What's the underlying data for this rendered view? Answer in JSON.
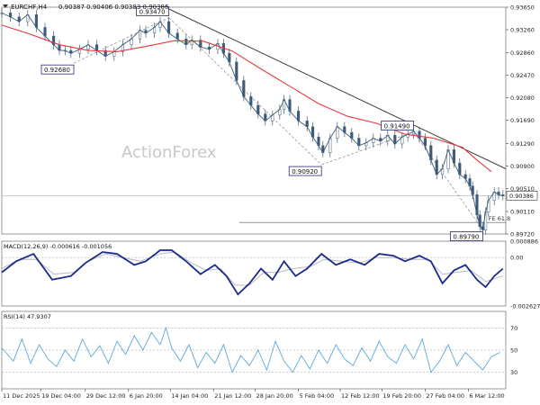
{
  "header": {
    "symbol": "EURCHF,H4",
    "ohlc": "0.90387 0.90406 0.90383 0.90386"
  },
  "watermark": "ActionForex",
  "colors": {
    "candles": "#3d5a7a",
    "sma": "#e8383d",
    "trendline": "#2b2b2b",
    "swingline": "#7a7a7a",
    "macd": "#1a2a8a",
    "signal": "#b8b8c8",
    "rsi": "#5da8e0",
    "label_border": "#2a2a7a",
    "grid": "#9a9a9a"
  },
  "chart_data": [
    {
      "type": "candlestick",
      "name": "price",
      "y_ticks": [
        "0.93650",
        "0.93260",
        "0.92860",
        "0.92470",
        "0.92080",
        "0.91690",
        "0.91290",
        "0.90900",
        "0.90510",
        "0.90110",
        "0.89720"
      ],
      "ylim": [
        0.8972,
        0.9365
      ],
      "current_price": "0.90386",
      "moving_average_path": [
        [
          0,
          0.9334
        ],
        [
          20,
          0.9318
        ],
        [
          40,
          0.93
        ],
        [
          60,
          0.929
        ],
        [
          80,
          0.9288
        ],
        [
          100,
          0.9297
        ],
        [
          120,
          0.9307
        ],
        [
          140,
          0.9306
        ],
        [
          160,
          0.9289
        ],
        [
          180,
          0.9258
        ],
        [
          200,
          0.9228
        ],
        [
          220,
          0.9198
        ],
        [
          240,
          0.9176
        ],
        [
          260,
          0.9164
        ],
        [
          280,
          0.9145
        ],
        [
          300,
          0.9138
        ],
        [
          320,
          0.9122
        ],
        [
          330,
          0.91
        ],
        [
          340,
          0.908
        ]
      ],
      "price_path": [
        [
          0,
          0.9355
        ],
        [
          6,
          0.9348
        ],
        [
          12,
          0.934
        ],
        [
          18,
          0.9352
        ],
        [
          24,
          0.933
        ],
        [
          30,
          0.9315
        ],
        [
          36,
          0.93
        ],
        [
          40,
          0.929
        ],
        [
          44,
          0.929
        ],
        [
          48,
          0.9285
        ],
        [
          54,
          0.9292
        ],
        [
          60,
          0.93
        ],
        [
          66,
          0.929
        ],
        [
          72,
          0.928
        ],
        [
          78,
          0.9288
        ],
        [
          84,
          0.93
        ],
        [
          90,
          0.931
        ],
        [
          96,
          0.9325
        ],
        [
          100,
          0.932
        ],
        [
          106,
          0.933
        ],
        [
          110,
          0.934
        ],
        [
          116,
          0.932
        ],
        [
          122,
          0.931
        ],
        [
          128,
          0.93
        ],
        [
          132,
          0.9308
        ],
        [
          138,
          0.9296
        ],
        [
          144,
          0.9292
        ],
        [
          150,
          0.9302
        ],
        [
          154,
          0.9285
        ],
        [
          158,
          0.927
        ],
        [
          163,
          0.9238
        ],
        [
          168,
          0.921
        ],
        [
          173,
          0.9195
        ],
        [
          178,
          0.918
        ],
        [
          183,
          0.9168
        ],
        [
          188,
          0.9178
        ],
        [
          193,
          0.9188
        ],
        [
          196,
          0.9205
        ],
        [
          200,
          0.9185
        ],
        [
          206,
          0.9168
        ],
        [
          212,
          0.9158
        ],
        [
          216,
          0.914
        ],
        [
          220,
          0.9125
        ],
        [
          223,
          0.9113
        ],
        [
          228,
          0.9138
        ],
        [
          233,
          0.9158
        ],
        [
          238,
          0.9148
        ],
        [
          243,
          0.9138
        ],
        [
          248,
          0.9125
        ],
        [
          253,
          0.913
        ],
        [
          258,
          0.9138
        ],
        [
          263,
          0.9133
        ],
        [
          268,
          0.9143
        ],
        [
          273,
          0.9128
        ],
        [
          278,
          0.914
        ],
        [
          282,
          0.9145
        ],
        [
          286,
          0.915
        ],
        [
          290,
          0.9138
        ],
        [
          294,
          0.9125
        ],
        [
          298,
          0.91
        ],
        [
          302,
          0.9075
        ],
        [
          306,
          0.9085
        ],
        [
          310,
          0.9118
        ],
        [
          314,
          0.9095
        ],
        [
          318,
          0.9075
        ],
        [
          322,
          0.9068
        ],
        [
          325,
          0.9055
        ],
        [
          327,
          0.904
        ],
        [
          330,
          0.9005
        ],
        [
          332,
          0.8985
        ],
        [
          334,
          0.8979
        ],
        [
          336,
          0.901
        ],
        [
          338,
          0.903
        ],
        [
          342,
          0.9045
        ],
        [
          345,
          0.904
        ],
        [
          348,
          0.9038
        ]
      ],
      "trendline": [
        [
          116,
          0.9362
        ],
        [
          350,
          0.9085
        ]
      ],
      "swing_points": [
        {
          "label": "0.93470",
          "value": 0.9347,
          "x": 116
        },
        {
          "label": "0.92680",
          "value": 0.9268,
          "x": 50
        },
        {
          "label": "0.90920",
          "value": 0.9092,
          "x": 222
        },
        {
          "label": "0.91490",
          "value": 0.9149,
          "x": 286
        },
        {
          "label": "0.89790",
          "value": 0.8979,
          "x": 334
        }
      ],
      "fibonacci": {
        "label": "FE 61.8",
        "value": 0.8992
      }
    },
    {
      "type": "line",
      "name": "MACD(12,26,9)",
      "label": "MACD(12,26,9) -0.000616 -0.001056",
      "y_ticks": [
        "0.000886",
        "0.00",
        "-0.002627"
      ],
      "ylim": [
        -0.002627,
        0.000886
      ],
      "series": [
        {
          "name": "macd",
          "values": [
            [
              0,
              -0.0008
            ],
            [
              10,
              -0.0002
            ],
            [
              22,
              0.0002
            ],
            [
              35,
              -0.0012
            ],
            [
              48,
              -0.001
            ],
            [
              58,
              -0.0003
            ],
            [
              70,
              0.0003
            ],
            [
              80,
              0.0002
            ],
            [
              92,
              -0.0004
            ],
            [
              100,
              -0.0002
            ],
            [
              110,
              0.0004
            ],
            [
              118,
              0.0004
            ],
            [
              128,
              -0.0002
            ],
            [
              138,
              -0.0009
            ],
            [
              148,
              -0.0004
            ],
            [
              156,
              -0.001
            ],
            [
              164,
              -0.002
            ],
            [
              172,
              -0.0014
            ],
            [
              180,
              -0.0006
            ],
            [
              188,
              -0.0012
            ],
            [
              196,
              -0.0002
            ],
            [
              204,
              -0.001
            ],
            [
              212,
              -0.0006
            ],
            [
              222,
              0.0002
            ],
            [
              232,
              -0.0004
            ],
            [
              242,
              -0.0001
            ],
            [
              252,
              -0.0004
            ],
            [
              262,
              0.0002
            ],
            [
              272,
              0.0001
            ],
            [
              280,
              -0.0002
            ],
            [
              290,
              0.0001
            ],
            [
              298,
              -0.0002
            ],
            [
              306,
              -0.0014
            ],
            [
              314,
              -0.0007
            ],
            [
              322,
              -0.0004
            ],
            [
              330,
              -0.0012
            ],
            [
              336,
              -0.0016
            ],
            [
              342,
              -0.001
            ],
            [
              348,
              -0.0006
            ]
          ]
        },
        {
          "name": "signal",
          "values": [
            [
              0,
              -0.0006
            ],
            [
              12,
              -0.0001
            ],
            [
              24,
              -0.0001
            ],
            [
              36,
              -0.0009
            ],
            [
              50,
              -0.0008
            ],
            [
              60,
              -0.0002
            ],
            [
              72,
              0.0002
            ],
            [
              84,
              0.0
            ],
            [
              96,
              -0.0002
            ],
            [
              110,
              0.0002
            ],
            [
              120,
              0.0003
            ],
            [
              132,
              -0.0003
            ],
            [
              142,
              -0.0007
            ],
            [
              152,
              -0.0006
            ],
            [
              162,
              -0.0015
            ],
            [
              172,
              -0.0015
            ],
            [
              182,
              -0.0008
            ],
            [
              192,
              -0.0008
            ],
            [
              202,
              -0.0006
            ],
            [
              214,
              -0.0005
            ],
            [
              224,
              -0.0001
            ],
            [
              236,
              -0.0002
            ],
            [
              248,
              -0.0003
            ],
            [
              260,
              0.0
            ],
            [
              272,
              0.0
            ],
            [
              284,
              -0.0001
            ],
            [
              296,
              -0.0001
            ],
            [
              306,
              -0.0009
            ],
            [
              316,
              -0.0008
            ],
            [
              326,
              -0.0007
            ],
            [
              336,
              -0.0013
            ],
            [
              344,
              -0.0011
            ],
            [
              348,
              -0.001
            ]
          ]
        }
      ]
    },
    {
      "type": "line",
      "name": "RSI(14)",
      "label": "RSI(14) 47.9307",
      "y_ticks": [
        "70",
        "50",
        "30"
      ],
      "ylim": [
        15,
        85
      ],
      "series": [
        {
          "name": "rsi",
          "values": [
            [
              0,
              52
            ],
            [
              8,
              40
            ],
            [
              14,
              60
            ],
            [
              20,
              38
            ],
            [
              26,
              55
            ],
            [
              32,
              42
            ],
            [
              38,
              35
            ],
            [
              44,
              50
            ],
            [
              50,
              40
            ],
            [
              56,
              60
            ],
            [
              62,
              44
            ],
            [
              68,
              54
            ],
            [
              74,
              38
            ],
            [
              80,
              58
            ],
            [
              86,
              46
            ],
            [
              92,
              63
            ],
            [
              98,
              50
            ],
            [
              104,
              66
            ],
            [
              110,
              55
            ],
            [
              114,
              70
            ],
            [
              118,
              52
            ],
            [
              124,
              40
            ],
            [
              130,
              55
            ],
            [
              136,
              34
            ],
            [
              142,
              48
            ],
            [
              148,
              38
            ],
            [
              154,
              55
            ],
            [
              160,
              30
            ],
            [
              166,
              45
            ],
            [
              172,
              36
            ],
            [
              178,
              50
            ],
            [
              184,
              32
            ],
            [
              190,
              58
            ],
            [
              196,
              40
            ],
            [
              202,
              30
            ],
            [
              208,
              45
            ],
            [
              214,
              33
            ],
            [
              220,
              50
            ],
            [
              226,
              38
            ],
            [
              232,
              55
            ],
            [
              238,
              42
            ],
            [
              244,
              36
            ],
            [
              250,
              52
            ],
            [
              256,
              40
            ],
            [
              262,
              58
            ],
            [
              268,
              44
            ],
            [
              274,
              38
            ],
            [
              280,
              55
            ],
            [
              286,
              42
            ],
            [
              292,
              60
            ],
            [
              298,
              30
            ],
            [
              304,
              40
            ],
            [
              310,
              55
            ],
            [
              316,
              36
            ],
            [
              322,
              48
            ],
            [
              328,
              40
            ],
            [
              334,
              32
            ],
            [
              340,
              44
            ],
            [
              346,
              48
            ]
          ]
        }
      ]
    }
  ],
  "x_axis": {
    "range": [
      0,
      350
    ],
    "ticks": [
      {
        "label": "11 Dec 2025",
        "x": 0
      },
      {
        "label": "19 Dec 04:00",
        "x": 27
      },
      {
        "label": "29 Dec 12:00",
        "x": 58
      },
      {
        "label": "6 Jan 20:00",
        "x": 88
      },
      {
        "label": "14 Jan 04:00",
        "x": 117
      },
      {
        "label": "21 Jan 12:00",
        "x": 147
      },
      {
        "label": "28 Jan 20:00",
        "x": 176
      },
      {
        "label": "5 Feb 04:00",
        "x": 206
      },
      {
        "label": "12 Feb 12:00",
        "x": 235
      },
      {
        "label": "19 Feb 20:00",
        "x": 264
      },
      {
        "label": "27 Feb 04:00",
        "x": 294
      },
      {
        "label": "6 Mar 12:00",
        "x": 324
      }
    ]
  }
}
